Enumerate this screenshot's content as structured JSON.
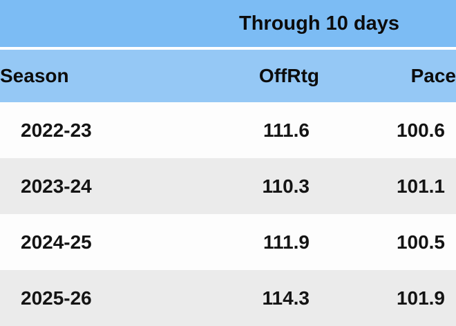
{
  "table": {
    "span_header": "Through 10 days",
    "columns": {
      "season": "Season",
      "offrtg": "OffRtg",
      "pace": "Pace"
    },
    "rows": [
      {
        "season": "2022-23",
        "offrtg": "111.6",
        "pace": "100.6"
      },
      {
        "season": "2023-24",
        "offrtg": "110.3",
        "pace": "101.1"
      },
      {
        "season": "2024-25",
        "offrtg": "111.9",
        "pace": "100.5"
      },
      {
        "season": "2025-26",
        "offrtg": "114.3",
        "pace": "101.9"
      }
    ]
  },
  "colors": {
    "band_blue": "#7cbcf4",
    "header_blue": "#95c8f5",
    "row_white": "#fdfdfd",
    "row_alt_gray": "#ebebeb",
    "text": "#141414"
  },
  "chart_data": {
    "type": "table",
    "title": "Through 10 days",
    "columns": [
      "Season",
      "OffRtg",
      "Pace"
    ],
    "rows": [
      [
        "2022-23",
        111.6,
        100.6
      ],
      [
        "2023-24",
        110.3,
        101.1
      ],
      [
        "2024-25",
        111.9,
        100.5
      ],
      [
        "2025-26",
        114.3,
        101.9
      ]
    ]
  }
}
